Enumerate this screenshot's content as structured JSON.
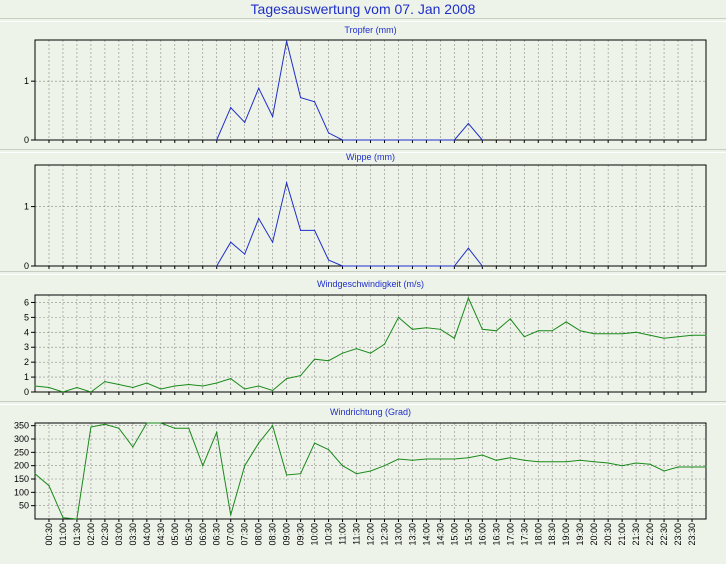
{
  "title": "Tagesauswertung vom 07. Jan 2008",
  "colors": {
    "background": "#eef3ea",
    "title": "#1f2fc8",
    "rain": "#1f2fc8",
    "wind": "#1a8a1a",
    "grid": "#8a8a8a",
    "frame": "#000000"
  },
  "x_ticks": [
    "00:30",
    "01:00",
    "01:30",
    "02:00",
    "02:30",
    "03:00",
    "03:30",
    "04:00",
    "04:30",
    "05:00",
    "05:30",
    "06:00",
    "06:30",
    "07:00",
    "07:30",
    "08:00",
    "08:30",
    "09:00",
    "09:30",
    "10:00",
    "10:30",
    "11:00",
    "11:30",
    "12:00",
    "12:30",
    "13:00",
    "13:30",
    "14:00",
    "14:30",
    "15:00",
    "15:30",
    "16:00",
    "16:30",
    "17:00",
    "17:30",
    "18:00",
    "18:30",
    "19:00",
    "19:30",
    "20:00",
    "20:30",
    "21:00",
    "21:30",
    "22:00",
    "22:30",
    "23:00",
    "23:30"
  ],
  "chart_data": [
    {
      "type": "line",
      "title": "Tropfer (mm)",
      "ylim": [
        0,
        1.7
      ],
      "yticks": [
        0,
        1
      ],
      "grid": true,
      "x_range": [
        "00:00",
        "24:00"
      ],
      "series": [
        {
          "color": "#1f2fc8",
          "x": [
            "06:30",
            "07:00",
            "07:30",
            "08:00",
            "08:30",
            "09:00",
            "09:30",
            "10:00",
            "10:30",
            "11:00",
            "15:00",
            "15:30",
            "16:00"
          ],
          "y": [
            0,
            0.55,
            0.3,
            0.88,
            0.4,
            1.68,
            0.72,
            0.65,
            0.12,
            0,
            0,
            0.28,
            0
          ]
        }
      ]
    },
    {
      "type": "line",
      "title": "Wippe (mm)",
      "ylim": [
        0,
        1.7
      ],
      "yticks": [
        0,
        1
      ],
      "grid": true,
      "x_range": [
        "00:00",
        "24:00"
      ],
      "series": [
        {
          "color": "#1f2fc8",
          "x": [
            "06:30",
            "07:00",
            "07:30",
            "08:00",
            "08:30",
            "09:00",
            "09:30",
            "10:00",
            "10:30",
            "11:00",
            "15:00",
            "15:30",
            "16:00"
          ],
          "y": [
            0,
            0.4,
            0.2,
            0.8,
            0.4,
            1.4,
            0.6,
            0.6,
            0.1,
            0,
            0,
            0.3,
            0
          ]
        }
      ]
    },
    {
      "type": "line",
      "title": "Windgeschwindigkeit (m/s)",
      "ylim": [
        0,
        6.5
      ],
      "yticks": [
        0,
        1,
        2,
        3,
        4,
        5,
        6
      ],
      "grid": true,
      "x_range": [
        "00:00",
        "24:00"
      ],
      "series": [
        {
          "color": "#1a8a1a",
          "x": [
            "00:00",
            "00:30",
            "01:00",
            "01:30",
            "02:00",
            "02:30",
            "03:00",
            "03:30",
            "04:00",
            "04:30",
            "05:00",
            "05:30",
            "06:00",
            "06:30",
            "07:00",
            "07:30",
            "08:00",
            "08:30",
            "09:00",
            "09:30",
            "10:00",
            "10:30",
            "11:00",
            "11:30",
            "12:00",
            "12:30",
            "13:00",
            "13:30",
            "14:00",
            "14:30",
            "15:00",
            "15:30",
            "16:00",
            "16:30",
            "17:00",
            "17:30",
            "18:00",
            "18:30",
            "19:00",
            "19:30",
            "20:00",
            "20:30",
            "21:00",
            "21:30",
            "22:00",
            "22:30",
            "23:00",
            "23:30",
            "24:00"
          ],
          "y": [
            0.4,
            0.3,
            0.0,
            0.3,
            0.0,
            0.7,
            0.5,
            0.3,
            0.6,
            0.2,
            0.4,
            0.5,
            0.4,
            0.6,
            0.9,
            0.2,
            0.4,
            0.1,
            0.9,
            1.1,
            2.2,
            2.1,
            2.6,
            2.9,
            2.6,
            3.2,
            5.0,
            4.2,
            4.3,
            4.2,
            3.6,
            6.3,
            4.2,
            4.1,
            4.9,
            3.7,
            4.1,
            4.1,
            4.7,
            4.1,
            3.9,
            3.9,
            3.9,
            4.0,
            3.8,
            3.6,
            3.7,
            3.8,
            3.8
          ]
        }
      ]
    },
    {
      "type": "line",
      "title": "Windrichtung (Grad)",
      "ylim": [
        0,
        360
      ],
      "yticks": [
        50,
        100,
        150,
        200,
        250,
        300,
        350
      ],
      "grid": true,
      "x_range": [
        "00:00",
        "24:00"
      ],
      "series": [
        {
          "color": "#1a8a1a",
          "x": [
            "00:00",
            "00:30",
            "01:00",
            "01:30",
            "02:00",
            "02:30",
            "03:00",
            "03:30",
            "04:00",
            "04:30",
            "05:00",
            "05:30",
            "06:00",
            "06:30",
            "07:00",
            "07:30",
            "08:00",
            "08:30",
            "09:00",
            "09:30",
            "10:00",
            "10:30",
            "11:00",
            "11:30",
            "12:00",
            "12:30",
            "13:00",
            "13:30",
            "14:00",
            "14:30",
            "15:00",
            "15:30",
            "16:00",
            "16:30",
            "17:00",
            "17:30",
            "18:00",
            "18:30",
            "19:00",
            "19:30",
            "20:00",
            "20:30",
            "21:00",
            "21:30",
            "22:00",
            "22:30",
            "23:00",
            "23:30",
            "24:00"
          ],
          "y": [
            170,
            125,
            5,
            0,
            345,
            355,
            340,
            270,
            360,
            360,
            340,
            340,
            200,
            325,
            15,
            200,
            285,
            350,
            165,
            170,
            285,
            260,
            200,
            170,
            180,
            200,
            225,
            220,
            225,
            225,
            225,
            230,
            240,
            220,
            230,
            220,
            215,
            215,
            215,
            220,
            215,
            210,
            200,
            210,
            205,
            180,
            195,
            195,
            195
          ]
        }
      ]
    }
  ]
}
